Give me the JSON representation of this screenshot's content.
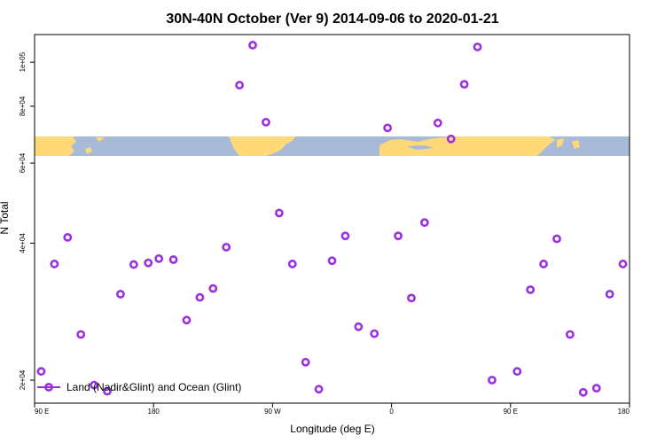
{
  "chart_data": {
    "type": "scatter",
    "title": "30N-40N October (Ver 9)   2014-09-06 to 2020-01-21",
    "xlabel": "Longitude (deg E)",
    "ylabel": "N Total",
    "x_ticks": [
      {
        "value": 90,
        "label": "90 E"
      },
      {
        "value": 180,
        "label": "180"
      },
      {
        "value": 270,
        "label": "90 W"
      },
      {
        "value": 360,
        "label": "0"
      },
      {
        "value": 450,
        "label": "90 E"
      },
      {
        "value": 540,
        "label": "180"
      }
    ],
    "y_ticks": [
      {
        "value": 20000,
        "label": "2e+04"
      },
      {
        "value": 40000,
        "label": "4e+04"
      },
      {
        "value": 60000,
        "label": "6e+04"
      },
      {
        "value": 80000,
        "label": "8e+04"
      },
      {
        "value": 100000,
        "label": "1e+05"
      }
    ],
    "xlim": [
      90,
      540
    ],
    "ylim": [
      17800,
      115000
    ],
    "y_scale": "log",
    "grid": false,
    "map_strip": true,
    "legend_position": "bottom-left",
    "colors": {
      "series": "#9b30e0",
      "ocean": "#a7bbd8",
      "land": "#ffd978"
    },
    "series": [
      {
        "name": "Land (Nadir&Glint) and Ocean (Glint)",
        "points": [
          [
            95,
            20900
          ],
          [
            105,
            36000
          ],
          [
            115,
            41200
          ],
          [
            125,
            25200
          ],
          [
            135,
            19500
          ],
          [
            145,
            18900
          ],
          [
            155,
            30900
          ],
          [
            165,
            35900
          ],
          [
            176,
            36200
          ],
          [
            184,
            37000
          ],
          [
            195,
            36800
          ],
          [
            205,
            27100
          ],
          [
            215,
            30400
          ],
          [
            225,
            31800
          ],
          [
            235,
            39200
          ],
          [
            245,
            89000
          ],
          [
            255,
            109000
          ],
          [
            265,
            73800
          ],
          [
            275,
            46600
          ],
          [
            285,
            36000
          ],
          [
            295,
            21900
          ],
          [
            305,
            19100
          ],
          [
            315,
            36600
          ],
          [
            325,
            41500
          ],
          [
            335,
            26200
          ],
          [
            347,
            25300
          ],
          [
            357,
            71700
          ],
          [
            365,
            41500
          ],
          [
            375,
            30300
          ],
          [
            385,
            44400
          ],
          [
            395,
            73500
          ],
          [
            405,
            67800
          ],
          [
            415,
            89400
          ],
          [
            425,
            108000
          ],
          [
            436,
            20000
          ],
          [
            455,
            20900
          ],
          [
            465,
            31600
          ],
          [
            475,
            36000
          ],
          [
            485,
            40900
          ],
          [
            495,
            25200
          ],
          [
            505,
            18800
          ],
          [
            515,
            19200
          ],
          [
            525,
            30900
          ],
          [
            535,
            36000
          ],
          [
            545,
            36000
          ]
        ]
      }
    ]
  }
}
